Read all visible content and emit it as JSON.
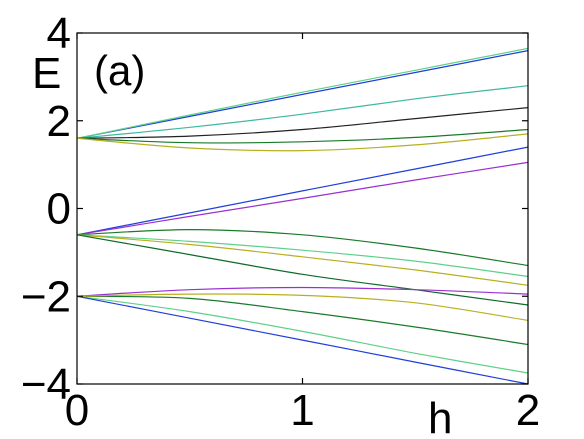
{
  "chart_data": {
    "type": "line",
    "panel_label": "(a)",
    "xlabel": "h",
    "ylabel": "E",
    "xlim": [
      0,
      2
    ],
    "ylim": [
      -4,
      4
    ],
    "xticks": [
      {
        "value": 0,
        "label": "0"
      },
      {
        "value": 1,
        "label": "1"
      },
      {
        "value": 2,
        "label": "2"
      }
    ],
    "yticks": [
      {
        "value": -4,
        "label": "−4"
      },
      {
        "value": -2,
        "label": "−2"
      },
      {
        "value": 0,
        "label": "0"
      },
      {
        "value": 2,
        "label": "2"
      },
      {
        "value": 4,
        "label": "4"
      }
    ],
    "grid": false,
    "series": [
      {
        "color": "#1f3fd8",
        "x": [
          0,
          0.5,
          1,
          1.5,
          2
        ],
        "y": [
          1.6,
          2.1,
          2.6,
          3.1,
          3.6
        ]
      },
      {
        "color": "#5fd08a",
        "x": [
          0,
          0.5,
          1,
          1.5,
          2
        ],
        "y": [
          1.6,
          2.13,
          2.65,
          3.15,
          3.65
        ]
      },
      {
        "color": "#3fb8a0",
        "x": [
          0,
          0.5,
          1,
          1.5,
          2
        ],
        "y": [
          1.6,
          1.85,
          2.15,
          2.5,
          2.8
        ]
      },
      {
        "color": "#222222",
        "x": [
          0,
          0.5,
          1,
          1.5,
          2
        ],
        "y": [
          1.6,
          1.65,
          1.8,
          2.05,
          2.3
        ]
      },
      {
        "color": "#1a7a2a",
        "x": [
          0,
          0.5,
          1,
          1.5,
          2
        ],
        "y": [
          1.6,
          1.5,
          1.52,
          1.62,
          1.8
        ]
      },
      {
        "color": "#b8b020",
        "x": [
          0,
          0.5,
          1,
          1.5,
          2
        ],
        "y": [
          1.6,
          1.38,
          1.32,
          1.45,
          1.7
        ]
      },
      {
        "color": "#1f3fd8",
        "x": [
          0,
          0.5,
          1,
          1.5,
          2
        ],
        "y": [
          -0.6,
          -0.1,
          0.4,
          0.9,
          1.4
        ]
      },
      {
        "color": "#9b30d0",
        "x": [
          0,
          0.5,
          1,
          1.5,
          2
        ],
        "y": [
          -0.6,
          -0.18,
          0.23,
          0.65,
          1.05
        ]
      },
      {
        "color": "#1a7a2a",
        "x": [
          0,
          0.5,
          1,
          1.5,
          2
        ],
        "y": [
          -0.6,
          -0.48,
          -0.6,
          -0.9,
          -1.3
        ]
      },
      {
        "color": "#5fd08a",
        "x": [
          0,
          0.5,
          1,
          1.5,
          2
        ],
        "y": [
          -0.6,
          -0.75,
          -0.95,
          -1.2,
          -1.55
        ]
      },
      {
        "color": "#b8b020",
        "x": [
          0,
          0.5,
          1,
          1.5,
          2
        ],
        "y": [
          -0.6,
          -0.82,
          -1.1,
          -1.4,
          -1.75
        ]
      },
      {
        "color": "#0f6a2a",
        "x": [
          0,
          0.5,
          1,
          1.5,
          2
        ],
        "y": [
          -0.6,
          -1.05,
          -1.5,
          -1.85,
          -2.2
        ]
      },
      {
        "color": "#1a7a2a",
        "x": [
          0,
          0.5,
          1,
          1.5,
          2
        ],
        "y": [
          -2.0,
          -2.05,
          -2.35,
          -2.7,
          -3.1
        ]
      },
      {
        "color": "#5fd08a",
        "x": [
          0,
          0.5,
          1,
          1.5,
          2
        ],
        "y": [
          -2.0,
          -2.35,
          -2.8,
          -3.3,
          -3.75
        ]
      },
      {
        "color": "#1f3fd8",
        "x": [
          0,
          0.5,
          1,
          1.5,
          2
        ],
        "y": [
          -2.0,
          -2.5,
          -3.0,
          -3.5,
          -4.0
        ]
      },
      {
        "color": "#9b30d0",
        "x": [
          0,
          0.5,
          1,
          1.5,
          2
        ],
        "y": [
          -2.0,
          -1.85,
          -1.8,
          -1.85,
          -1.95
        ]
      },
      {
        "color": "#b8b020",
        "x": [
          0,
          0.5,
          1,
          1.5,
          2
        ],
        "y": [
          -2.0,
          -1.95,
          -1.98,
          -2.15,
          -2.55
        ]
      }
    ]
  }
}
